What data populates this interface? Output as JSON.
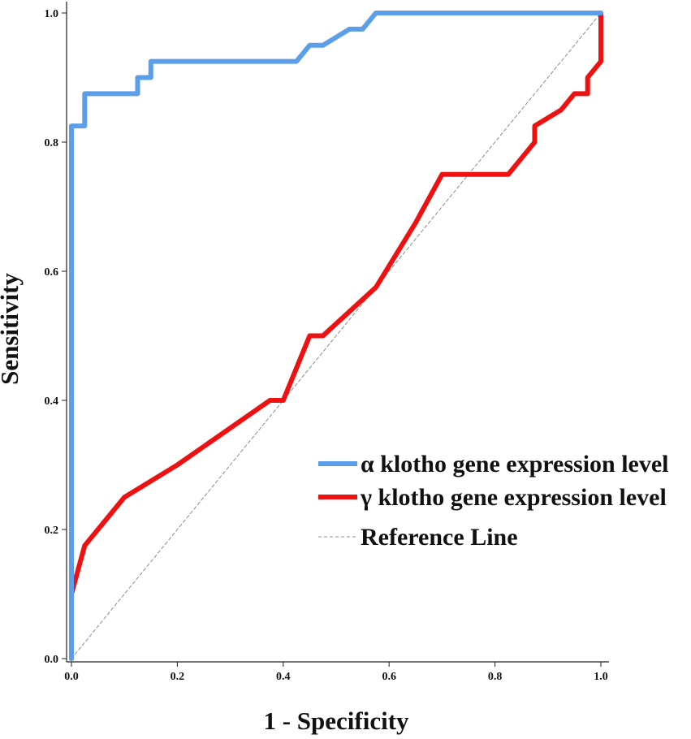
{
  "chart_data": {
    "type": "line",
    "xlabel": "1 - Specificity",
    "ylabel": "Sensitivity",
    "xlim": [
      0,
      1
    ],
    "ylim": [
      0,
      1
    ],
    "x_ticks": [
      "0.0",
      "0.2",
      "0.4",
      "0.6",
      "0.8",
      "1.0"
    ],
    "y_ticks": [
      "0.0",
      "0.2",
      "0.4",
      "0.6",
      "0.8",
      "1.0"
    ],
    "grid": false,
    "legend_position": "right",
    "series": [
      {
        "name": "α klotho gene expression level",
        "color": "#5b9ee9",
        "points": [
          [
            0.0,
            0.0
          ],
          [
            0.0,
            0.825
          ],
          [
            0.025,
            0.825
          ],
          [
            0.025,
            0.875
          ],
          [
            0.125,
            0.875
          ],
          [
            0.125,
            0.9
          ],
          [
            0.15,
            0.9
          ],
          [
            0.15,
            0.925
          ],
          [
            0.425,
            0.925
          ],
          [
            0.45,
            0.95
          ],
          [
            0.475,
            0.95
          ],
          [
            0.525,
            0.975
          ],
          [
            0.55,
            0.975
          ],
          [
            0.575,
            1.0
          ],
          [
            1.0,
            1.0
          ]
        ]
      },
      {
        "name": "γ klotho gene expression level",
        "color": "#ee1111",
        "points": [
          [
            0.0,
            0.0
          ],
          [
            0.0,
            0.1
          ],
          [
            0.025,
            0.175
          ],
          [
            0.1,
            0.25
          ],
          [
            0.2,
            0.3
          ],
          [
            0.375,
            0.4
          ],
          [
            0.4,
            0.4
          ],
          [
            0.45,
            0.5
          ],
          [
            0.475,
            0.5
          ],
          [
            0.575,
            0.575
          ],
          [
            0.65,
            0.675
          ],
          [
            0.7,
            0.75
          ],
          [
            0.825,
            0.75
          ],
          [
            0.875,
            0.8
          ],
          [
            0.875,
            0.825
          ],
          [
            0.925,
            0.85
          ],
          [
            0.95,
            0.875
          ],
          [
            0.975,
            0.875
          ],
          [
            0.975,
            0.9
          ],
          [
            1.0,
            0.925
          ],
          [
            1.0,
            1.0
          ]
        ]
      },
      {
        "name": "Reference Line",
        "color": "#8c8c8c",
        "dashed": true,
        "points": [
          [
            0.0,
            0.0
          ],
          [
            1.0,
            1.0
          ]
        ]
      }
    ]
  }
}
